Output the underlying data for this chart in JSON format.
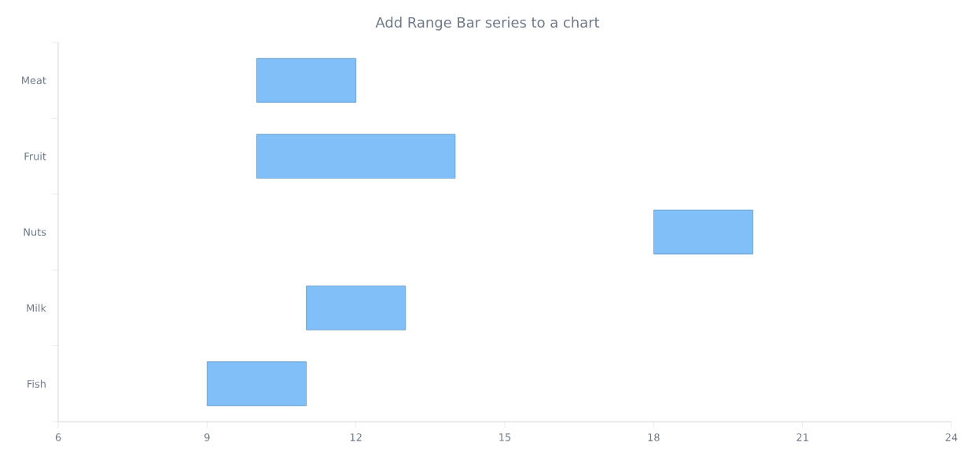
{
  "chart_data": {
    "type": "bar",
    "orientation": "horizontal",
    "title": "Add Range Bar series to a chart",
    "categories": [
      "Meat",
      "Fruit",
      "Nuts",
      "Milk",
      "Fish"
    ],
    "base": [
      10,
      10,
      18,
      11,
      9
    ],
    "values": [
      2,
      4,
      2,
      2,
      2
    ],
    "color": "#80bff7",
    "xlim": [
      6,
      24
    ],
    "xticks": [
      6,
      9,
      12,
      15,
      18,
      21,
      24
    ]
  }
}
